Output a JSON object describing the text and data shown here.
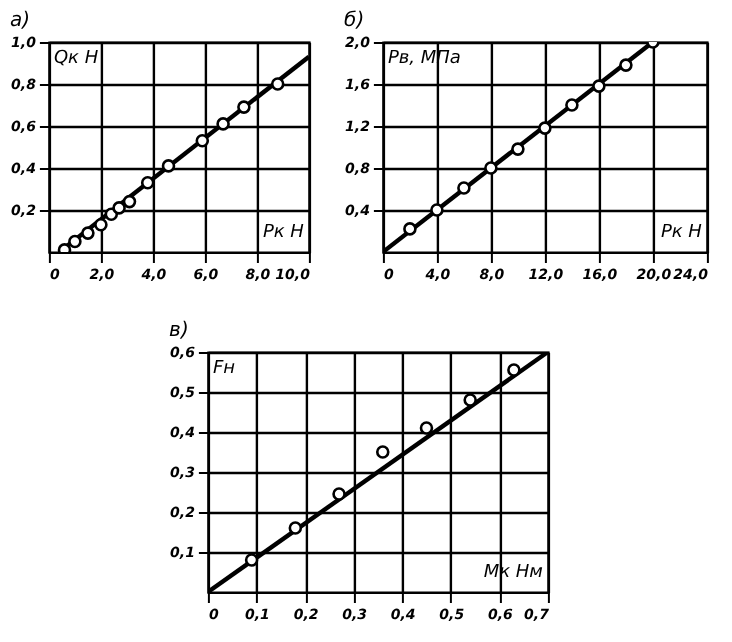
{
  "chart_data": [
    {
      "type": "scatter",
      "title": "а)",
      "xlabel": "Pк Н",
      "ylabel": "Qк Н",
      "xlim": [
        0,
        10
      ],
      "ylim": [
        0,
        1.0
      ],
      "grid": true,
      "marker": "circle",
      "xticks": [
        0,
        {
          "value": 2,
          "label": "2,0"
        },
        {
          "value": 4,
          "label": "4,0"
        },
        {
          "value": 6,
          "label": "6,0"
        },
        {
          "value": 8,
          "label": "8,0"
        },
        {
          "value": 10,
          "label": "10,0"
        }
      ],
      "yticks": [
        {
          "value": 0.2,
          "label": "0,2"
        },
        {
          "value": 0.4,
          "label": "0,4"
        },
        {
          "value": 0.6,
          "label": "0,6"
        },
        {
          "value": 0.8,
          "label": "0,8"
        },
        {
          "value": 1.0,
          "label": "1,0"
        }
      ],
      "series": [
        {
          "type": "line",
          "marker": "none",
          "color": "#000000",
          "x": [
            0.5,
            10
          ],
          "values": [
            0.01,
            0.93
          ]
        },
        {
          "type": "scatter",
          "color": "#000000",
          "x": [
            0.6,
            1.0,
            1.5,
            2.0,
            2.4,
            2.7,
            3.1,
            3.8,
            4.6,
            5.9,
            6.7,
            7.5,
            8.8
          ],
          "values": [
            0.01,
            0.05,
            0.09,
            0.13,
            0.18,
            0.21,
            0.24,
            0.33,
            0.41,
            0.53,
            0.61,
            0.69,
            0.8
          ]
        }
      ]
    },
    {
      "type": "scatter",
      "title": "б)",
      "xlabel": "Pк Н",
      "ylabel": "Pв, МПа",
      "xlim": [
        0,
        24
      ],
      "ylim": [
        0,
        2.0
      ],
      "grid": true,
      "marker": "circle",
      "xticks": [
        0,
        {
          "value": 4,
          "label": "4,0"
        },
        {
          "value": 8,
          "label": "8,0"
        },
        {
          "value": 12,
          "label": "12,0"
        },
        {
          "value": 16,
          "label": "16,0"
        },
        {
          "value": 20,
          "label": "20,0"
        },
        {
          "value": 24,
          "label": "24,0"
        }
      ],
      "yticks": [
        {
          "value": 0.4,
          "label": "0,4"
        },
        {
          "value": 0.8,
          "label": "0,8"
        },
        {
          "value": 1.2,
          "label": "1,2"
        },
        {
          "value": 1.6,
          "label": "1,6"
        },
        {
          "value": 2.0,
          "label": "2,0"
        }
      ],
      "series": [
        {
          "type": "line",
          "marker": "none",
          "color": "#000000",
          "x": [
            0,
            20
          ],
          "values": [
            0,
            2.0
          ]
        },
        {
          "type": "scatter",
          "color": "#000000",
          "x": [
            2,
            4,
            6,
            8,
            10,
            12,
            14,
            16,
            18,
            20
          ],
          "values": [
            0.22,
            0.4,
            0.61,
            0.8,
            0.98,
            1.18,
            1.4,
            1.58,
            1.78,
            2.0
          ]
        }
      ]
    },
    {
      "type": "scatter",
      "title": "в)",
      "xlabel": "Mк Нм",
      "ylabel": "Fн",
      "xlim": [
        0,
        0.7
      ],
      "ylim": [
        0,
        0.6
      ],
      "grid": true,
      "marker": "circle",
      "xticks": [
        0,
        {
          "value": 0.1,
          "label": "0,1"
        },
        {
          "value": 0.2,
          "label": "0,2"
        },
        {
          "value": 0.3,
          "label": "0,3"
        },
        {
          "value": 0.4,
          "label": "0,4"
        },
        {
          "value": 0.5,
          "label": "0,5"
        },
        {
          "value": 0.6,
          "label": "0,6"
        },
        {
          "value": 0.7,
          "label": "0,7"
        }
      ],
      "yticks": [
        {
          "value": 0.1,
          "label": "0,1"
        },
        {
          "value": 0.2,
          "label": "0,2"
        },
        {
          "value": 0.3,
          "label": "0,3"
        },
        {
          "value": 0.4,
          "label": "0,4"
        },
        {
          "value": 0.5,
          "label": "0,5"
        },
        {
          "value": 0.6,
          "label": "0,6"
        }
      ],
      "series": [
        {
          "type": "line",
          "marker": "none",
          "color": "#000000",
          "x": [
            0,
            0.7
          ],
          "values": [
            0,
            0.6
          ]
        },
        {
          "type": "scatter",
          "color": "#000000",
          "x": [
            0.09,
            0.18,
            0.27,
            0.36,
            0.45,
            0.54,
            0.63
          ],
          "values": [
            0.08,
            0.16,
            0.245,
            0.35,
            0.41,
            0.48,
            0.555
          ]
        }
      ]
    }
  ]
}
